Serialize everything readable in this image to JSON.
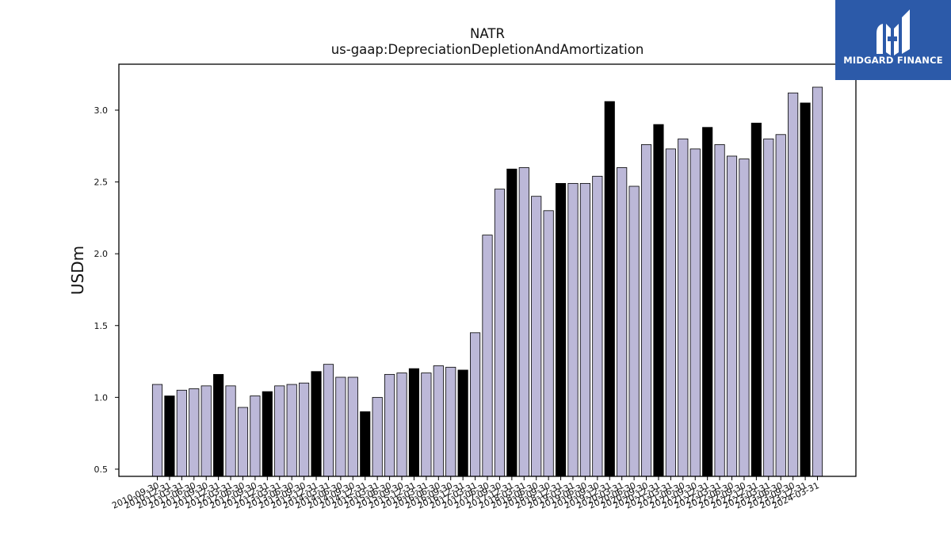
{
  "logo": {
    "name": "MIDGARD FINANCE",
    "bg_color": "#2c5aa9"
  },
  "chart_data": {
    "type": "bar",
    "title": "NATR",
    "subtitle": "us-gaap:DepreciationDepletionAndAmortization",
    "xlabel": "",
    "ylabel": "USDm",
    "ylim": [
      0.45,
      3.32
    ],
    "yticks": [
      0.5,
      1.0,
      1.5,
      2.0,
      2.5,
      3.0
    ],
    "ytick_labels": [
      "0.5",
      "1.0",
      "1.5",
      "2.0",
      "2.5",
      "3.0"
    ],
    "grid": false,
    "colors": {
      "quarter": "#bcb8d8",
      "annual": "#000000",
      "edge": "#000000"
    },
    "categories": [
      "2010-09-30",
      "2010-12-31",
      "2011-03-31",
      "2011-06-30",
      "2011-09-30",
      "2011-12-31",
      "2012-03-31",
      "2012-06-30",
      "2012-09-30",
      "2012-12-31",
      "2013-03-31",
      "2013-06-30",
      "2013-09-30",
      "2013-12-31",
      "2014-03-31",
      "2014-06-30",
      "2014-09-30",
      "2014-12-31",
      "2015-03-31",
      "2015-06-30",
      "2015-09-30",
      "2015-12-31",
      "2016-03-31",
      "2016-06-30",
      "2016-09-30",
      "2016-12-31",
      "2017-03-31",
      "2017-06-30",
      "2017-09-30",
      "2017-12-31",
      "2018-03-31",
      "2018-06-30",
      "2018-09-30",
      "2018-12-31",
      "2019-03-31",
      "2019-06-30",
      "2019-09-30",
      "2019-12-31",
      "2020-03-31",
      "2020-06-30",
      "2020-09-30",
      "2020-12-31",
      "2021-03-31",
      "2021-06-30",
      "2021-09-30",
      "2021-12-31",
      "2022-03-31",
      "2022-06-30",
      "2022-09-30",
      "2022-12-31",
      "2023-03-31",
      "2023-06-30",
      "2023-09-30",
      "2023-12-31",
      "2024-03-31"
    ],
    "values": [
      1.09,
      1.01,
      1.05,
      1.06,
      1.08,
      1.16,
      1.08,
      0.93,
      1.01,
      1.04,
      1.08,
      1.09,
      1.1,
      1.18,
      1.23,
      1.14,
      1.14,
      0.9,
      1.0,
      1.16,
      1.17,
      1.2,
      1.17,
      1.22,
      1.21,
      1.19,
      1.45,
      2.13,
      2.45,
      2.59,
      2.6,
      2.4,
      2.3,
      2.49,
      2.49,
      2.49,
      2.54,
      3.06,
      2.6,
      2.47,
      2.76,
      2.9,
      2.73,
      2.8,
      2.73,
      2.88,
      2.76,
      2.68,
      2.66,
      2.91,
      2.8,
      2.83,
      3.12,
      3.05,
      3.16
    ],
    "highlight": [
      false,
      true,
      false,
      false,
      false,
      true,
      false,
      false,
      false,
      true,
      false,
      false,
      false,
      true,
      false,
      false,
      false,
      true,
      false,
      false,
      false,
      true,
      false,
      false,
      false,
      true,
      false,
      false,
      false,
      true,
      false,
      false,
      false,
      true,
      false,
      false,
      false,
      true,
      false,
      false,
      false,
      true,
      false,
      false,
      false,
      true,
      false,
      false,
      false,
      true,
      false,
      false,
      false,
      true,
      false
    ]
  }
}
